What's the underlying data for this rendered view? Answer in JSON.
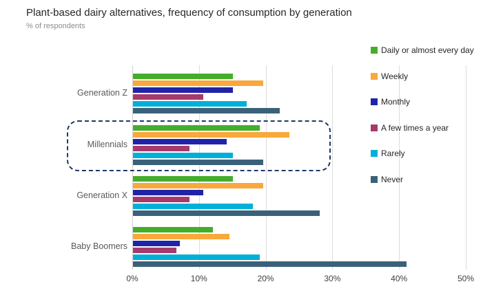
{
  "page": {
    "title": "Plant-based dairy alternatives, frequency of consumption by generation",
    "subtitle": "% of respondents"
  },
  "chart_data": {
    "type": "bar",
    "orientation": "horizontal",
    "title": "Plant-based dairy alternatives, frequency of consumption by generation",
    "subtitle": "% of respondents",
    "unit": "percent of respondents",
    "categories": [
      "Generation Z",
      "Millennials",
      "Generation X",
      "Baby Boomers"
    ],
    "series": [
      {
        "name": "Daily or almost every day",
        "color": "#44AD2B",
        "values": [
          15,
          19,
          15,
          12
        ]
      },
      {
        "name": "Weekly",
        "color": "#F9A83C",
        "values": [
          19.5,
          23.5,
          19.5,
          14.5
        ]
      },
      {
        "name": "Monthly",
        "color": "#2023A8",
        "values": [
          15,
          14,
          10.5,
          7
        ]
      },
      {
        "name": "A few times a year",
        "color": "#A63A6C",
        "values": [
          10.5,
          8.5,
          8.5,
          6.5
        ]
      },
      {
        "name": "Rarely",
        "color": "#00B0D8",
        "values": [
          17,
          15,
          18,
          19
        ]
      },
      {
        "name": "Never",
        "color": "#3A617A",
        "values": [
          22,
          19.5,
          28,
          41
        ]
      }
    ],
    "x_tick_labels": [
      "0%",
      "10%",
      "20%",
      "30%",
      "40%",
      "50%"
    ],
    "x_tick_values": [
      0,
      10,
      20,
      30,
      40,
      50
    ],
    "xlim": [
      0,
      50
    ],
    "grid": "vertical",
    "legend_position": "right",
    "annotation": {
      "shape": "dashed-rounded-rect",
      "target_category": "Millennials",
      "color": "#1F3864"
    }
  }
}
